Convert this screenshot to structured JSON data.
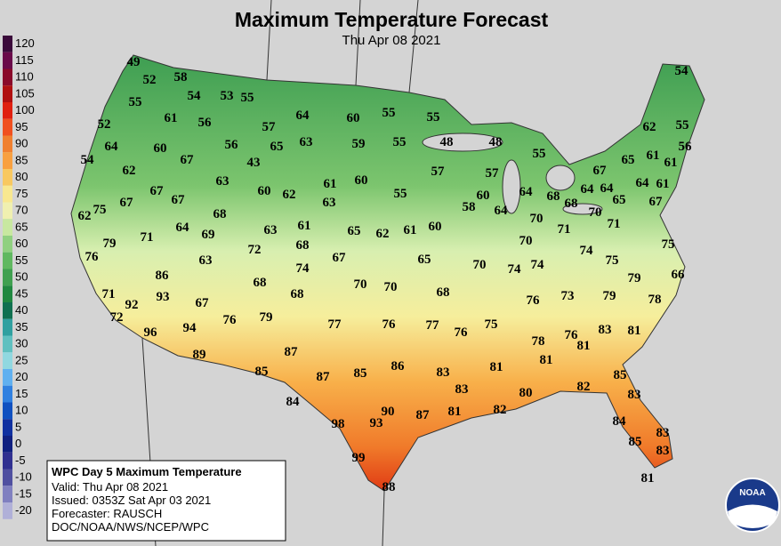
{
  "header": {
    "title": "Maximum Temperature Forecast",
    "subtitle": "Thu Apr 08 2021"
  },
  "scale": [
    {
      "value": 120,
      "color": "#3a0a3a"
    },
    {
      "value": 115,
      "color": "#6a0a4a"
    },
    {
      "value": 110,
      "color": "#8a0a2a"
    },
    {
      "value": 105,
      "color": "#b01010"
    },
    {
      "value": 100,
      "color": "#e02010"
    },
    {
      "value": 95,
      "color": "#f05020"
    },
    {
      "value": 90,
      "color": "#f08030"
    },
    {
      "value": 85,
      "color": "#f8a040"
    },
    {
      "value": 80,
      "color": "#f8c860"
    },
    {
      "value": 75,
      "color": "#f8e890"
    },
    {
      "value": 70,
      "color": "#f0f0b0"
    },
    {
      "value": 65,
      "color": "#c8e8a0"
    },
    {
      "value": 60,
      "color": "#90d080"
    },
    {
      "value": 55,
      "color": "#60b860"
    },
    {
      "value": 50,
      "color": "#40a050"
    },
    {
      "value": 45,
      "color": "#208840"
    },
    {
      "value": 40,
      "color": "#107050"
    },
    {
      "value": 35,
      "color": "#30a0a0"
    },
    {
      "value": 30,
      "color": "#60c0c0"
    },
    {
      "value": 25,
      "color": "#90d8e0"
    },
    {
      "value": 20,
      "color": "#60b0f0"
    },
    {
      "value": 15,
      "color": "#3080e0"
    },
    {
      "value": 10,
      "color": "#1050c0"
    },
    {
      "value": 5,
      "color": "#1030a0"
    },
    {
      "value": 0,
      "color": "#102080"
    },
    {
      "value": -5,
      "color": "#303090"
    },
    {
      "value": -10,
      "color": "#5050a0"
    },
    {
      "value": -15,
      "color": "#8080c0"
    },
    {
      "value": -20,
      "color": "#b0b0d8"
    }
  ],
  "temperatures": [
    49,
    52,
    58,
    55,
    54,
    53,
    55,
    61,
    56,
    64,
    60,
    55,
    55,
    52,
    57,
    64,
    60,
    56,
    65,
    63,
    59,
    55,
    48,
    48,
    54,
    67,
    43,
    55,
    62,
    57,
    57,
    63,
    61,
    60,
    67,
    67,
    60,
    62,
    55,
    60,
    64,
    68,
    63,
    58,
    64,
    68,
    62,
    75,
    67,
    68,
    70,
    70,
    67,
    64,
    69,
    71,
    63,
    61,
    65,
    62,
    61,
    60,
    71,
    79,
    68,
    72,
    70,
    71,
    75,
    76,
    63,
    67,
    65,
    74,
    70,
    74,
    74,
    74,
    75,
    86,
    68,
    93,
    70,
    70,
    68,
    79,
    66,
    71,
    68,
    92,
    67,
    76,
    73,
    79,
    78,
    72,
    76,
    79,
    77,
    76,
    77,
    75,
    76,
    96,
    94,
    83,
    81,
    78,
    76,
    81,
    87,
    89,
    81,
    81,
    85,
    87,
    85,
    86,
    83,
    85,
    83,
    80,
    82,
    83,
    84,
    90,
    87,
    81,
    82,
    98,
    93,
    84,
    83,
    85,
    83,
    99,
    88,
    81,
    54,
    62,
    55,
    56,
    65,
    61,
    61,
    67,
    64,
    64,
    64,
    61,
    65
  ],
  "info": {
    "title": "WPC Day 5 Maximum Temperature",
    "valid": "Valid: Thu Apr 08 2021",
    "issued": "Issued: 0353Z Sat Apr 03 2021",
    "forecaster": "Forecaster: RAUSCH",
    "source": "DOC/NOAA/NWS/NCEP/WPC"
  },
  "logo": "NOAA"
}
